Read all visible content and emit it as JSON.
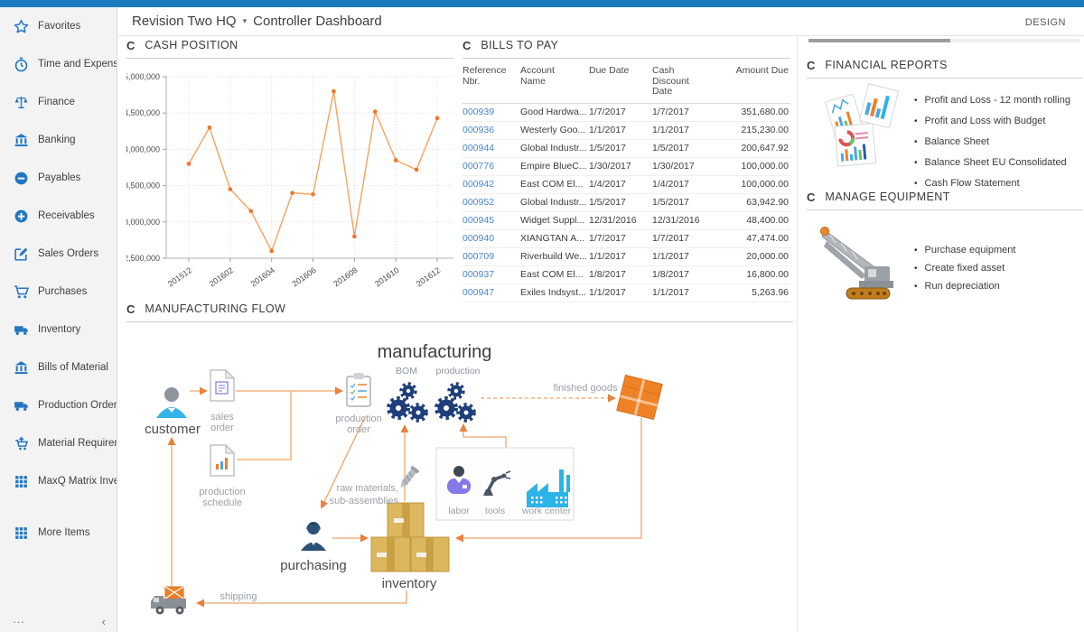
{
  "header": {
    "company": "Revision Two HQ",
    "caret_icon": "▾",
    "page_title": "Controller Dashboard",
    "design_button": "DESIGN"
  },
  "sidebar": {
    "items": [
      {
        "icon": "star",
        "label": "Favorites"
      },
      {
        "icon": "clock",
        "label": "Time and Expenses"
      },
      {
        "icon": "scales",
        "label": "Finance"
      },
      {
        "icon": "bank",
        "label": "Banking"
      },
      {
        "icon": "minus-circle",
        "label": "Payables"
      },
      {
        "icon": "plus-circle",
        "label": "Receivables"
      },
      {
        "icon": "edit",
        "label": "Sales Orders"
      },
      {
        "icon": "cart",
        "label": "Purchases"
      },
      {
        "icon": "truck",
        "label": "Inventory"
      },
      {
        "icon": "bank",
        "label": "Bills of Material"
      },
      {
        "icon": "truck",
        "label": "Production Orders"
      },
      {
        "icon": "cart-plus",
        "label": "Material Requirem..."
      },
      {
        "icon": "grid",
        "label": "MaxQ Matrix Invent..."
      },
      {
        "icon": "grid",
        "label": "More Items",
        "group_break": true
      }
    ],
    "footer": {
      "more": "···",
      "collapse": "‹"
    }
  },
  "widgets": {
    "cash_position": {
      "title": "CASH POSITION"
    },
    "bills_to_pay": {
      "title": "BILLS TO PAY",
      "columns": [
        "Reference\nNbr.",
        "Account\nName",
        "Due Date",
        "Cash\nDiscount\nDate",
        "Amount Due"
      ],
      "rows": [
        [
          "000939",
          "Good Hardwa...",
          "1/7/2017",
          "1/7/2017",
          "351,680.00"
        ],
        [
          "000936",
          "Westerly Goo...",
          "1/1/2017",
          "1/1/2017",
          "215,230.00"
        ],
        [
          "000944",
          "Global Industr...",
          "1/5/2017",
          "1/5/2017",
          "200,647.92"
        ],
        [
          "000776",
          "Empire BlueC...",
          "1/30/2017",
          "1/30/2017",
          "100,000.00"
        ],
        [
          "000942",
          "East COM El...",
          "1/4/2017",
          "1/4/2017",
          "100,000.00"
        ],
        [
          "000952",
          "Global Industr...",
          "1/5/2017",
          "1/5/2017",
          "63,942.90"
        ],
        [
          "000945",
          "Widget Suppl...",
          "12/31/2016",
          "12/31/2016",
          "48,400.00"
        ],
        [
          "000940",
          "XIANGTAN A...",
          "1/7/2017",
          "1/7/2017",
          "47,474.00"
        ],
        [
          "000709",
          "Riverbuild We...",
          "1/1/2017",
          "1/1/2017",
          "20,000.00"
        ],
        [
          "000937",
          "East COM El...",
          "1/8/2017",
          "1/8/2017",
          "16,800.00"
        ],
        [
          "000947",
          "Exiles Indsyst...",
          "1/1/2017",
          "1/1/2017",
          "5,263.96"
        ]
      ]
    },
    "financial_reports": {
      "title": "FINANCIAL REPORTS",
      "links": [
        "Profit and Loss - 12 month rolling",
        "Profit and Loss with Budget",
        "Balance Sheet",
        "Balance Sheet EU Consolidated",
        "Cash Flow Statement"
      ]
    },
    "manage_equipment": {
      "title": "MANAGE EQUIPMENT",
      "links": [
        "Purchase equipment",
        "Create fixed asset",
        "Run depreciation"
      ]
    },
    "manufacturing_flow": {
      "title": "MANUFACTURING FLOW",
      "labels": {
        "manufacturing": "manufacturing",
        "bom": "BOM",
        "production": "production",
        "customer": "customer",
        "sales_order_1": "sales",
        "sales_order_2": "order",
        "production_schedule_1": "production",
        "production_schedule_2": "schedule",
        "production_order_1": "production",
        "production_order_2": "order",
        "finished_goods": "finished goods",
        "raw_materials_1": "raw materials,",
        "raw_materials_2": "sub-assemblies",
        "labor": "labor",
        "tools": "tools",
        "work_center": "work center",
        "purchasing": "purchasing",
        "inventory": "inventory",
        "shipping": "shipping"
      }
    }
  },
  "chart_data": {
    "type": "line",
    "title": "CASH POSITION",
    "x": [
      "201512",
      "201601",
      "201602",
      "201603",
      "201604",
      "201605",
      "201606",
      "201607",
      "201608",
      "201609",
      "201610",
      "201611",
      "201612"
    ],
    "x_tick_labels": [
      "201512",
      "201602",
      "201604",
      "201606",
      "201608",
      "201610",
      "201612"
    ],
    "values": [
      63800000,
      64300000,
      63450000,
      63150000,
      62600000,
      63400000,
      63380000,
      64800000,
      62800000,
      64520000,
      63850000,
      63720000,
      64430000
    ],
    "ylim": [
      62500000,
      65000000
    ],
    "y_step": 500000,
    "grid": true,
    "legend": "none",
    "line_color": "#f8a15f",
    "marker_color": "#ef7428"
  },
  "colors": {
    "topbar_blue": "#1b7ac0",
    "sidebar_icon_blue": "#2277c4",
    "chart_orange": "#ef7428",
    "flow_connector_orange": "#f2a368",
    "gear_navy": "#1d3e79",
    "box_tan": "#dcb75e",
    "factory_cyan": "#2cb3e8",
    "link_blue": "#4a86c8"
  }
}
